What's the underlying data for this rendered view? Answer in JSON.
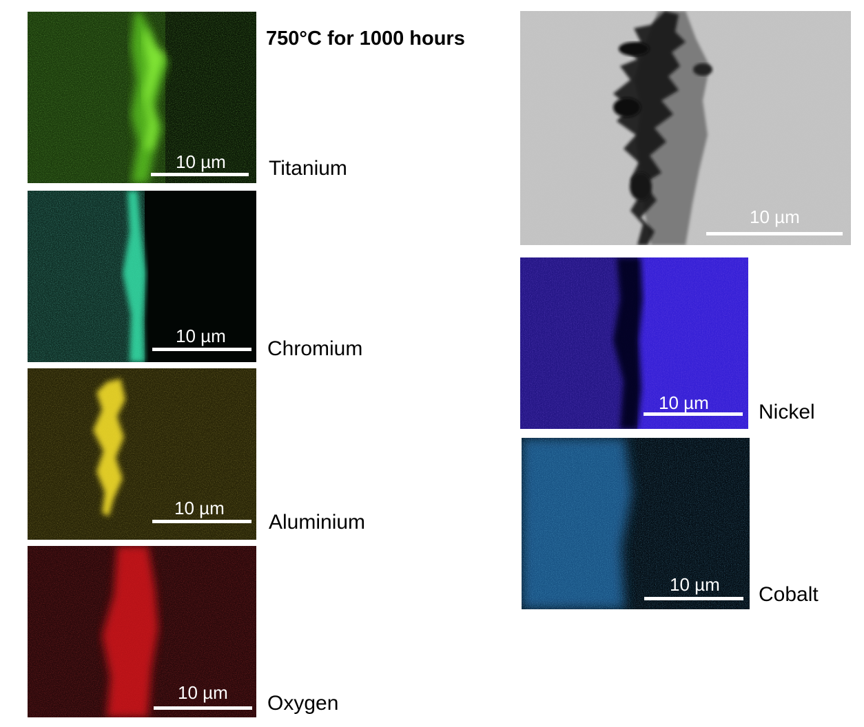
{
  "title": "750°C for 1000 hours",
  "scale_bar_label": "10 µm",
  "panels": {
    "sem": {
      "label": ""
    },
    "titanium": {
      "label": "Titanium",
      "color": "#3fa81c"
    },
    "chromium": {
      "label": "Chromium",
      "color": "#2fc99a"
    },
    "aluminium": {
      "label": "Aluminium",
      "color": "#d9bf1e"
    },
    "oxygen": {
      "label": "Oxygen",
      "color": "#e01818"
    },
    "nickel": {
      "label": "Nickel",
      "color": "#3a1fd9"
    },
    "cobalt": {
      "label": "Cobalt",
      "color": "#2a8fd6"
    }
  }
}
